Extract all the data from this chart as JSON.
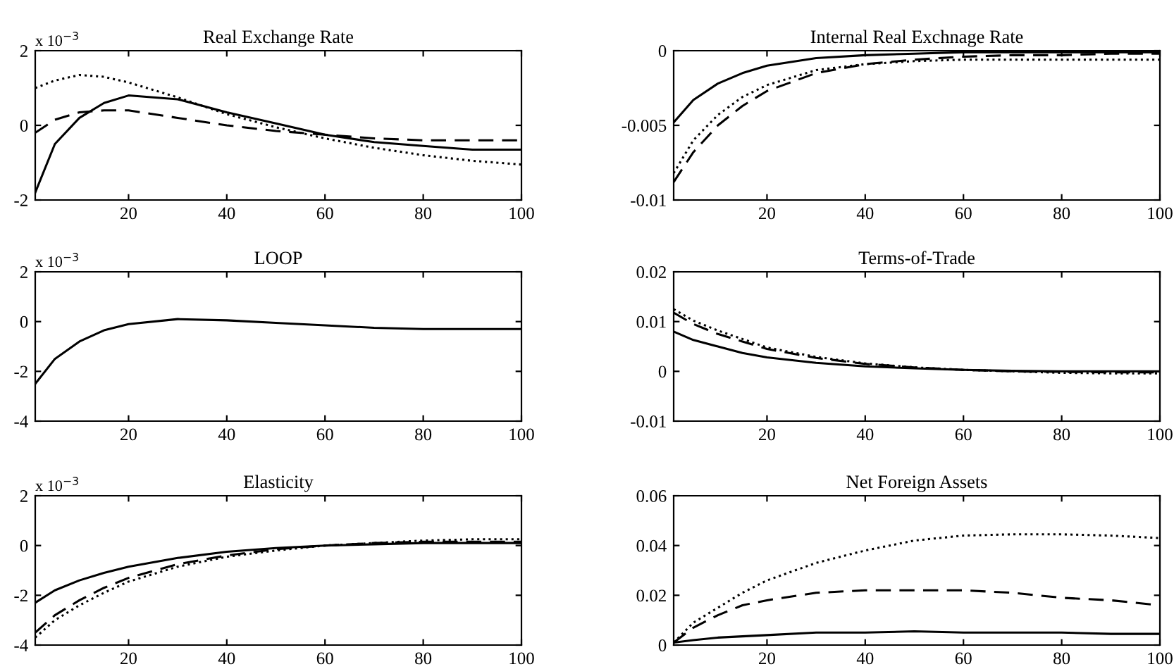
{
  "chart_data": [
    {
      "type": "line",
      "title": "Real Exchange Rate",
      "annotations": [
        "x 10$^{−3}$"
      ],
      "x": [
        1,
        5,
        10,
        15,
        20,
        30,
        40,
        50,
        60,
        70,
        80,
        90,
        100
      ],
      "xlim": [
        1,
        100
      ],
      "xticks": [
        20,
        40,
        60,
        80,
        100
      ],
      "ylim": [
        -2,
        2
      ],
      "yticks": [
        -2,
        0,
        2
      ],
      "series": [
        {
          "color": "#000000",
          "line_style": "solid",
          "values": [
            -1.8,
            -0.5,
            0.2,
            0.6,
            0.8,
            0.7,
            0.35,
            0.05,
            -0.25,
            -0.45,
            -0.55,
            -0.65,
            -0.65
          ]
        },
        {
          "color": "#000000",
          "line_style": "dashed",
          "values": [
            -0.2,
            0.15,
            0.35,
            0.4,
            0.4,
            0.2,
            0,
            -0.15,
            -0.25,
            -0.35,
            -0.4,
            -0.4,
            -0.4
          ]
        },
        {
          "color": "#000000",
          "line_style": "dotted",
          "values": [
            1.0,
            1.2,
            1.35,
            1.3,
            1.15,
            0.75,
            0.3,
            -0.05,
            -0.35,
            -0.6,
            -0.8,
            -0.95,
            -1.05
          ]
        }
      ]
    },
    {
      "type": "line",
      "title": "Internal Real Exchnage Rate",
      "x": [
        1,
        5,
        10,
        15,
        20,
        30,
        40,
        50,
        60,
        70,
        80,
        90,
        100
      ],
      "xlim": [
        1,
        100
      ],
      "xticks": [
        20,
        40,
        60,
        80,
        100
      ],
      "ylim": [
        -0.01,
        0
      ],
      "yticks": [
        -0.01,
        -0.005,
        0
      ],
      "series": [
        {
          "color": "#000000",
          "line_style": "solid",
          "values": [
            -0.0048,
            -0.0033,
            -0.0022,
            -0.0015,
            -0.001,
            -0.0005,
            -0.0003,
            -0.0002,
            -0.0001,
            -0.0001,
            -0.0001,
            -0.0001,
            -0.0001
          ]
        },
        {
          "color": "#000000",
          "line_style": "dashed",
          "values": [
            -0.0088,
            -0.0068,
            -0.005,
            -0.0037,
            -0.0027,
            -0.0015,
            -0.0009,
            -0.0006,
            -0.0004,
            -0.0003,
            -0.0003,
            -0.0002,
            -0.0002
          ]
        },
        {
          "color": "#000000",
          "line_style": "dotted",
          "values": [
            -0.0082,
            -0.006,
            -0.0043,
            -0.0031,
            -0.0023,
            -0.0013,
            -0.0009,
            -0.0007,
            -0.0006,
            -0.0006,
            -0.0006,
            -0.0006,
            -0.0006
          ]
        }
      ]
    },
    {
      "type": "line",
      "title": "LOOP",
      "annotations": [
        "x 10$^{−3}$"
      ],
      "x": [
        1,
        5,
        10,
        15,
        20,
        30,
        40,
        50,
        60,
        70,
        80,
        90,
        100
      ],
      "xlim": [
        1,
        100
      ],
      "xticks": [
        20,
        40,
        60,
        80,
        100
      ],
      "ylim": [
        -4,
        2
      ],
      "yticks": [
        -4,
        -2,
        0,
        2
      ],
      "series": [
        {
          "color": "#000000",
          "line_style": "solid",
          "values": [
            -2.5,
            -1.5,
            -0.8,
            -0.35,
            -0.1,
            0.1,
            0.05,
            -0.05,
            -0.15,
            -0.25,
            -0.3,
            -0.3,
            -0.3
          ]
        }
      ]
    },
    {
      "type": "line",
      "title": "Terms-of-Trade",
      "x": [
        1,
        5,
        10,
        15,
        20,
        30,
        40,
        50,
        60,
        70,
        80,
        90,
        100
      ],
      "xlim": [
        1,
        100
      ],
      "xticks": [
        20,
        40,
        60,
        80,
        100
      ],
      "ylim": [
        -0.01,
        0.02
      ],
      "yticks": [
        -0.01,
        0,
        0.01,
        0.02
      ],
      "series": [
        {
          "color": "#000000",
          "line_style": "solid",
          "values": [
            0.008,
            0.0063,
            0.005,
            0.0037,
            0.0028,
            0.0017,
            0.001,
            0.0006,
            0.0003,
            0.0001,
            0,
            0,
            0
          ]
        },
        {
          "color": "#000000",
          "line_style": "dashed",
          "values": [
            0.0118,
            0.0095,
            0.0075,
            0.006,
            0.0045,
            0.0027,
            0.0015,
            0.0008,
            0.0003,
            0,
            -0.0001,
            -0.0002,
            -0.0002
          ]
        },
        {
          "color": "#000000",
          "line_style": "dotted",
          "values": [
            0.0125,
            0.0102,
            0.0082,
            0.0065,
            0.0048,
            0.0029,
            0.0016,
            0.0008,
            0.0003,
            0,
            -0.0003,
            -0.0004,
            -0.0004
          ]
        }
      ]
    },
    {
      "type": "line",
      "title": "Elasticity",
      "annotations": [
        "x 10$^{−3}$"
      ],
      "x": [
        1,
        5,
        10,
        15,
        20,
        30,
        40,
        50,
        60,
        70,
        80,
        90,
        100
      ],
      "xlim": [
        1,
        100
      ],
      "xticks": [
        20,
        40,
        60,
        80,
        100
      ],
      "ylim": [
        -4,
        2
      ],
      "yticks": [
        -4,
        -2,
        0,
        2
      ],
      "series": [
        {
          "color": "#000000",
          "line_style": "solid",
          "values": [
            -2.3,
            -1.8,
            -1.4,
            -1.1,
            -0.85,
            -0.5,
            -0.25,
            -0.1,
            0,
            0.05,
            0.1,
            0.1,
            0.1
          ]
        },
        {
          "color": "#000000",
          "line_style": "dashed",
          "values": [
            -3.5,
            -2.8,
            -2.2,
            -1.7,
            -1.3,
            -0.75,
            -0.4,
            -0.15,
            0,
            0.1,
            0.15,
            0.15,
            0.15
          ]
        },
        {
          "color": "#000000",
          "line_style": "dotted",
          "values": [
            -3.7,
            -3.0,
            -2.4,
            -1.9,
            -1.45,
            -0.85,
            -0.45,
            -0.2,
            0,
            0.1,
            0.2,
            0.25,
            0.25
          ]
        }
      ]
    },
    {
      "type": "line",
      "title": "Net Foreign Assets",
      "x": [
        1,
        5,
        10,
        15,
        20,
        30,
        40,
        50,
        60,
        70,
        80,
        90,
        100
      ],
      "xlim": [
        1,
        100
      ],
      "xticks": [
        20,
        40,
        60,
        80,
        100
      ],
      "ylim": [
        0,
        0.06
      ],
      "yticks": [
        0,
        0.02,
        0.04,
        0.06
      ],
      "series": [
        {
          "color": "#000000",
          "line_style": "solid",
          "values": [
            0.001,
            0.002,
            0.003,
            0.0035,
            0.004,
            0.005,
            0.005,
            0.0055,
            0.005,
            0.005,
            0.005,
            0.0045,
            0.0045
          ]
        },
        {
          "color": "#000000",
          "line_style": "dashed",
          "values": [
            0.001,
            0.007,
            0.012,
            0.016,
            0.018,
            0.021,
            0.022,
            0.022,
            0.022,
            0.021,
            0.019,
            0.018,
            0.016
          ]
        },
        {
          "color": "#000000",
          "line_style": "dotted",
          "values": [
            0.001,
            0.009,
            0.015,
            0.021,
            0.026,
            0.033,
            0.038,
            0.042,
            0.044,
            0.0445,
            0.0445,
            0.044,
            0.043
          ]
        }
      ]
    }
  ]
}
